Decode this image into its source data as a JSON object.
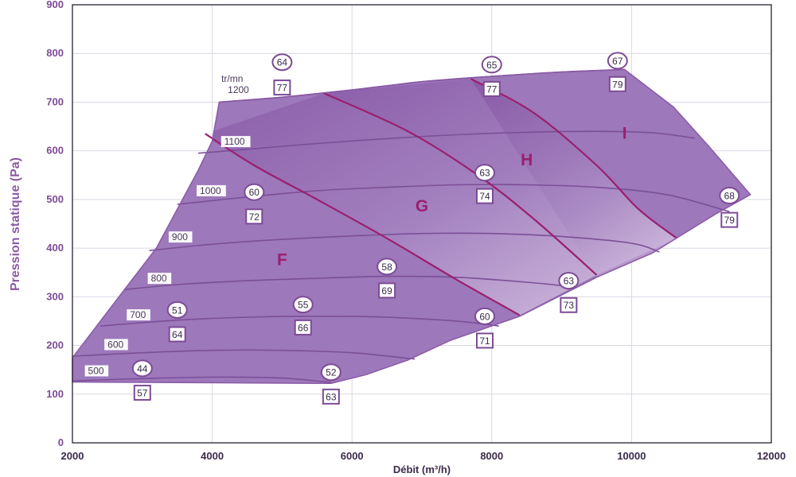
{
  "chart_data": {
    "type": "area",
    "title": "",
    "xlabel": "Débit (m³/h)",
    "ylabel": "Pression statique (Pa)",
    "xlim": [
      2000,
      12000
    ],
    "ylim": [
      0,
      900
    ],
    "xticks": [
      2000,
      4000,
      6000,
      8000,
      10000,
      12000
    ],
    "yticks": [
      0,
      100,
      200,
      300,
      400,
      500,
      600,
      700,
      800,
      900
    ],
    "grid": true,
    "speed_unit": "tr/mn",
    "envelope": [
      [
        2000,
        175
      ],
      [
        2400,
        250
      ],
      [
        2800,
        325
      ],
      [
        3200,
        400
      ],
      [
        3500,
        480
      ],
      [
        3800,
        560
      ],
      [
        4000,
        620
      ],
      [
        4100,
        700
      ],
      [
        5000,
        710
      ],
      [
        6000,
        725
      ],
      [
        7000,
        742
      ],
      [
        8000,
        753
      ],
      [
        9000,
        762
      ],
      [
        9900,
        767
      ],
      [
        10600,
        690
      ],
      [
        11100,
        610
      ],
      [
        11700,
        510
      ],
      [
        11200,
        470
      ],
      [
        10300,
        390
      ],
      [
        9500,
        340
      ],
      [
        8400,
        260
      ],
      [
        7400,
        210
      ],
      [
        6800,
        170
      ],
      [
        6200,
        140
      ],
      [
        5700,
        122
      ],
      [
        2000,
        125
      ]
    ],
    "speed_curves": [
      {
        "rpm": "500",
        "points": [
          [
            2000,
            127
          ],
          [
            3000,
            132
          ],
          [
            4000,
            135
          ],
          [
            5000,
            133
          ],
          [
            5700,
            124
          ]
        ]
      },
      {
        "rpm": "600",
        "points": [
          [
            2000,
            178
          ],
          [
            3000,
            185
          ],
          [
            4000,
            190
          ],
          [
            5000,
            190
          ],
          [
            6000,
            185
          ],
          [
            6900,
            172
          ]
        ]
      },
      {
        "rpm": "700",
        "points": [
          [
            2400,
            240
          ],
          [
            3500,
            252
          ],
          [
            4500,
            258
          ],
          [
            5500,
            260
          ],
          [
            6500,
            258
          ],
          [
            7500,
            250
          ],
          [
            8100,
            240
          ]
        ]
      },
      {
        "rpm": "800",
        "points": [
          [
            2750,
            315
          ],
          [
            3500,
            325
          ],
          [
            4500,
            333
          ],
          [
            5500,
            338
          ],
          [
            6500,
            342
          ],
          [
            7500,
            340
          ],
          [
            8500,
            330
          ],
          [
            9200,
            320
          ]
        ]
      },
      {
        "rpm": "900",
        "points": [
          [
            3100,
            395
          ],
          [
            4000,
            408
          ],
          [
            5000,
            418
          ],
          [
            6000,
            425
          ],
          [
            7000,
            430
          ],
          [
            8000,
            430
          ],
          [
            9000,
            424
          ],
          [
            10000,
            410
          ],
          [
            10400,
            392
          ]
        ]
      },
      {
        "rpm": "1000",
        "points": [
          [
            3500,
            490
          ],
          [
            4500,
            505
          ],
          [
            5500,
            518
          ],
          [
            6500,
            525
          ],
          [
            7500,
            530
          ],
          [
            8500,
            530
          ],
          [
            9500,
            525
          ],
          [
            10500,
            510
          ],
          [
            11400,
            475
          ]
        ]
      },
      {
        "rpm": "1100",
        "points": [
          [
            3800,
            595
          ],
          [
            4500,
            603
          ],
          [
            5500,
            615
          ],
          [
            6500,
            625
          ],
          [
            7500,
            633
          ],
          [
            8500,
            638
          ],
          [
            9500,
            640
          ],
          [
            10300,
            637
          ],
          [
            10900,
            626
          ]
        ]
      },
      {
        "rpm": "1200",
        "points": [
          [
            4100,
            700
          ],
          [
            5000,
            710
          ],
          [
            6000,
            725
          ],
          [
            7000,
            742
          ],
          [
            8000,
            753
          ],
          [
            9000,
            762
          ],
          [
            9900,
            767
          ]
        ]
      }
    ],
    "zone_boundaries": [
      {
        "name": "F-G",
        "points": [
          [
            3900,
            635
          ],
          [
            4600,
            570
          ],
          [
            5500,
            500
          ],
          [
            6500,
            420
          ],
          [
            7500,
            335
          ],
          [
            8400,
            262
          ]
        ]
      },
      {
        "name": "G-H",
        "points": [
          [
            5600,
            718
          ],
          [
            6800,
            640
          ],
          [
            7800,
            550
          ],
          [
            8600,
            460
          ],
          [
            9500,
            345
          ]
        ]
      },
      {
        "name": "H-I",
        "points": [
          [
            7700,
            748
          ],
          [
            8600,
            678
          ],
          [
            9500,
            570
          ],
          [
            10100,
            480
          ],
          [
            10650,
            420
          ]
        ]
      }
    ],
    "zones": [
      {
        "label": "F",
        "x": 5000,
        "y": 365
      },
      {
        "label": "G",
        "x": 7000,
        "y": 475
      },
      {
        "label": "H",
        "x": 8500,
        "y": 570
      },
      {
        "label": "I",
        "x": 9900,
        "y": 625
      }
    ],
    "speed_labels": [
      {
        "text": "500",
        "x": 2200,
        "y": 143
      },
      {
        "text": "600",
        "x": 2480,
        "y": 197
      },
      {
        "text": "700",
        "x": 2800,
        "y": 258
      },
      {
        "text": "800",
        "x": 3100,
        "y": 333
      },
      {
        "text": "900",
        "x": 3400,
        "y": 418
      },
      {
        "text": "1000",
        "x": 3800,
        "y": 513
      },
      {
        "text": "1100",
        "x": 4150,
        "y": 614
      },
      {
        "text": "1200",
        "x": 4200,
        "y": 720
      }
    ],
    "circle_markers": [
      {
        "text": "44",
        "x": 3000,
        "y": 153
      },
      {
        "text": "51",
        "x": 3500,
        "y": 273
      },
      {
        "text": "60",
        "x": 4600,
        "y": 515
      },
      {
        "text": "64",
        "x": 5000,
        "y": 782
      },
      {
        "text": "55",
        "x": 5300,
        "y": 284
      },
      {
        "text": "52",
        "x": 5700,
        "y": 145
      },
      {
        "text": "58",
        "x": 6500,
        "y": 362
      },
      {
        "text": "60",
        "x": 7900,
        "y": 260
      },
      {
        "text": "63",
        "x": 7900,
        "y": 555
      },
      {
        "text": "65",
        "x": 8000,
        "y": 777
      },
      {
        "text": "63",
        "x": 9100,
        "y": 333
      },
      {
        "text": "67",
        "x": 9800,
        "y": 785
      },
      {
        "text": "68",
        "x": 11400,
        "y": 508
      }
    ],
    "square_markers": [
      {
        "text": "57",
        "x": 3000,
        "y": 103
      },
      {
        "text": "64",
        "x": 3500,
        "y": 223
      },
      {
        "text": "72",
        "x": 4600,
        "y": 465
      },
      {
        "text": "77",
        "x": 5000,
        "y": 730
      },
      {
        "text": "66",
        "x": 5300,
        "y": 237
      },
      {
        "text": "63",
        "x": 5700,
        "y": 95
      },
      {
        "text": "69",
        "x": 6500,
        "y": 313
      },
      {
        "text": "71",
        "x": 7900,
        "y": 210
      },
      {
        "text": "74",
        "x": 7900,
        "y": 507
      },
      {
        "text": "77",
        "x": 8000,
        "y": 727
      },
      {
        "text": "73",
        "x": 9100,
        "y": 283
      },
      {
        "text": "79",
        "x": 9800,
        "y": 737
      },
      {
        "text": "79",
        "x": 11400,
        "y": 458
      }
    ]
  }
}
